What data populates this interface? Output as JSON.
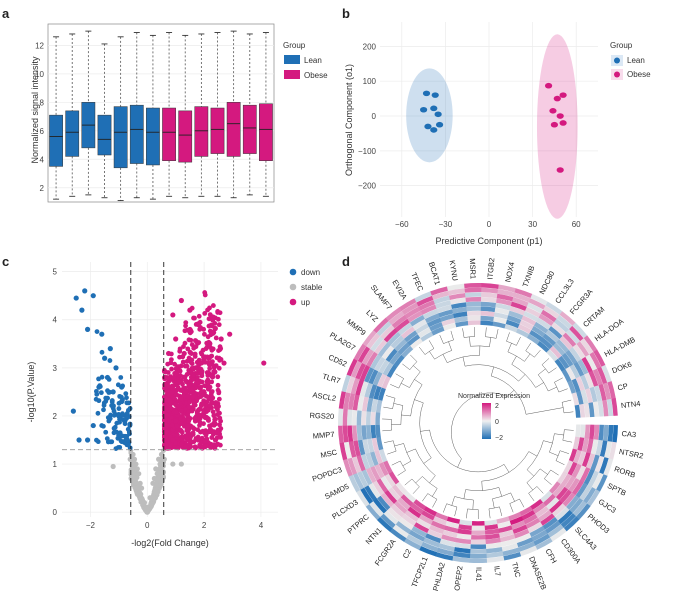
{
  "panels": {
    "a": {
      "letter": "a"
    },
    "b": {
      "letter": "b"
    },
    "c": {
      "letter": "c"
    },
    "d": {
      "letter": "d"
    }
  },
  "colors": {
    "lean": "#1f6fb5",
    "obese": "#d4197f",
    "down": "#1f6fb5",
    "stable": "#bdbdbd",
    "up": "#d4197f",
    "grid": "#ececec"
  },
  "chart_data": [
    {
      "id": "a",
      "type": "box",
      "ylabel": "Normalized signal intensity",
      "xlabel": "",
      "ylim": [
        1,
        13.5
      ],
      "yticks": [
        2,
        4,
        6,
        8,
        10,
        12
      ],
      "legend": {
        "title": "Group",
        "entries": [
          "Lean",
          "Obese"
        ],
        "position": "right"
      },
      "boxes": [
        {
          "group": "Lean",
          "min": 1.2,
          "q1": 3.5,
          "median": 5.6,
          "q3": 7.1,
          "max": 12.6
        },
        {
          "group": "Lean",
          "min": 1.4,
          "q1": 4.2,
          "median": 5.9,
          "q3": 7.4,
          "max": 12.8
        },
        {
          "group": "Lean",
          "min": 1.5,
          "q1": 4.8,
          "median": 6.4,
          "q3": 8.0,
          "max": 13.0
        },
        {
          "group": "Lean",
          "min": 1.3,
          "q1": 4.3,
          "median": 5.4,
          "q3": 7.1,
          "max": 12.1
        },
        {
          "group": "Lean",
          "min": 1.1,
          "q1": 3.4,
          "median": 5.9,
          "q3": 7.7,
          "max": 12.6
        },
        {
          "group": "Lean",
          "min": 1.3,
          "q1": 3.7,
          "median": 6.1,
          "q3": 7.8,
          "max": 12.9
        },
        {
          "group": "Lean",
          "min": 1.2,
          "q1": 3.6,
          "median": 5.9,
          "q3": 7.6,
          "max": 12.7
        },
        {
          "group": "Obese",
          "min": 1.4,
          "q1": 3.9,
          "median": 5.9,
          "q3": 7.6,
          "max": 12.9
        },
        {
          "group": "Obese",
          "min": 1.3,
          "q1": 3.8,
          "median": 5.7,
          "q3": 7.4,
          "max": 12.7
        },
        {
          "group": "Obese",
          "min": 1.4,
          "q1": 4.2,
          "median": 6.0,
          "q3": 7.7,
          "max": 12.8
        },
        {
          "group": "Obese",
          "min": 1.4,
          "q1": 4.4,
          "median": 6.1,
          "q3": 7.6,
          "max": 12.9
        },
        {
          "group": "Obese",
          "min": 1.3,
          "q1": 4.2,
          "median": 6.5,
          "q3": 8.0,
          "max": 13.0
        },
        {
          "group": "Obese",
          "min": 1.5,
          "q1": 4.4,
          "median": 6.2,
          "q3": 7.8,
          "max": 12.8
        },
        {
          "group": "Obese",
          "min": 1.4,
          "q1": 3.9,
          "median": 6.1,
          "q3": 7.9,
          "max": 12.9
        }
      ]
    },
    {
      "id": "b",
      "type": "scatter",
      "xlabel": "Predictive Component (p1)",
      "ylabel": "Orthogonal Component (o1)",
      "xlim": [
        -75,
        75
      ],
      "ylim": [
        -290,
        270
      ],
      "xticks": [
        -60,
        -30,
        0,
        30,
        60
      ],
      "yticks": [
        -200,
        -100,
        0,
        100,
        200
      ],
      "legend": {
        "title": "Group",
        "entries": [
          "Lean",
          "Obese"
        ],
        "position": "right"
      },
      "series": [
        {
          "name": "Lean",
          "points": [
            [
              -43,
              65
            ],
            [
              -37,
              60
            ],
            [
              -45,
              18
            ],
            [
              -38,
              22
            ],
            [
              -35,
              5
            ],
            [
              -42,
              -30
            ],
            [
              -38,
              -40
            ],
            [
              -34,
              -25
            ]
          ],
          "ellipse": {
            "cx": -41,
            "cy": 2,
            "rx": 16,
            "ry": 135
          }
        },
        {
          "name": "Obese",
          "points": [
            [
              41,
              87
            ],
            [
              51,
              60
            ],
            [
              47,
              50
            ],
            [
              44,
              15
            ],
            [
              49,
              0
            ],
            [
              45,
              -25
            ],
            [
              51,
              -20
            ],
            [
              49,
              -155
            ]
          ],
          "ellipse": {
            "cx": 47,
            "cy": -30,
            "rx": 14,
            "ry": 265
          }
        }
      ]
    },
    {
      "id": "c",
      "type": "scatter",
      "xlabel": "-log2(Fold Change)",
      "ylabel": "-log10(P.Value)",
      "xlim": [
        -3,
        4.6
      ],
      "ylim": [
        -0.1,
        5.2
      ],
      "xticks": [
        -2,
        0,
        2,
        4
      ],
      "yticks": [
        0,
        1,
        2,
        3,
        4,
        5
      ],
      "thresholds": {
        "fc": [
          -0.58,
          0.58
        ],
        "p": 1.3
      },
      "legend": {
        "entries": [
          "down",
          "stable",
          "up"
        ],
        "position": "right"
      },
      "series": [
        {
          "name": "down",
          "points": [
            [
              -2.5,
              4.45
            ],
            [
              -2.2,
              4.6
            ],
            [
              -1.9,
              4.5
            ],
            [
              -2.3,
              4.2
            ],
            [
              -2.6,
              2.1
            ],
            [
              -2.1,
              1.5
            ],
            [
              -2.4,
              1.5
            ],
            [
              -1.9,
              1.8
            ],
            [
              -2.1,
              3.8
            ],
            [
              -1.6,
              3.7
            ],
            [
              -1.3,
              3.4
            ],
            [
              -1.1,
              3.0
            ],
            [
              -0.9,
              2.6
            ],
            [
              -1.2,
              2.2
            ],
            [
              -0.8,
              1.9
            ],
            [
              -1.0,
              1.6
            ],
            [
              -0.75,
              1.45
            ],
            [
              -1.5,
              3.2
            ],
            [
              -1.4,
              2.8
            ],
            [
              -1.2,
              2.5
            ],
            [
              -0.9,
              2.3
            ],
            [
              -1.7,
              2.6
            ],
            [
              -0.7,
              1.5
            ],
            [
              -1.0,
              2.0
            ]
          ]
        },
        {
          "name": "stable",
          "points": [
            [
              0.0,
              0.0
            ],
            [
              -0.1,
              0.2
            ],
            [
              0.1,
              0.3
            ],
            [
              -0.2,
              0.5
            ],
            [
              0.2,
              0.6
            ],
            [
              -0.3,
              0.8
            ],
            [
              0.3,
              0.9
            ],
            [
              -0.4,
              1.0
            ],
            [
              0.4,
              1.1
            ],
            [
              -0.5,
              1.2
            ],
            [
              0.5,
              1.2
            ],
            [
              -0.25,
              0.6
            ],
            [
              0.25,
              0.7
            ],
            [
              -0.45,
              1.1
            ],
            [
              0.45,
              1.0
            ],
            [
              -0.6,
              1.1
            ],
            [
              0.6,
              1.1
            ],
            [
              -0.35,
              0.9
            ],
            [
              0.35,
              0.8
            ],
            [
              0.0,
              0.1
            ],
            [
              -1.2,
              0.95
            ],
            [
              0.9,
              1.0
            ],
            [
              1.2,
              1.0
            ]
          ]
        },
        {
          "name": "up",
          "points": [
            [
              4.1,
              3.1
            ],
            [
              2.9,
              3.7
            ],
            [
              2.6,
              3.6
            ],
            [
              2.3,
              4.0
            ],
            [
              2.2,
              3.5
            ],
            [
              2.0,
              3.2
            ],
            [
              1.8,
              3.9
            ],
            [
              1.5,
              4.2
            ],
            [
              1.2,
              4.4
            ],
            [
              0.9,
              4.1
            ],
            [
              1.0,
              3.6
            ],
            [
              1.3,
              3.3
            ],
            [
              1.7,
              3.0
            ],
            [
              2.2,
              2.6
            ],
            [
              2.5,
              2.2
            ],
            [
              1.6,
              2.4
            ],
            [
              1.1,
              2.7
            ],
            [
              0.8,
              2.3
            ],
            [
              0.7,
              1.8
            ],
            [
              1.0,
              1.9
            ],
            [
              1.4,
              1.7
            ],
            [
              1.8,
              1.5
            ],
            [
              2.4,
              1.5
            ],
            [
              0.65,
              1.4
            ],
            [
              0.9,
              1.5
            ],
            [
              1.2,
              2.1
            ],
            [
              1.5,
              2.9
            ],
            [
              2.0,
              2.0
            ],
            [
              2.7,
              3.1
            ],
            [
              0.75,
              3.3
            ]
          ]
        }
      ]
    },
    {
      "id": "d",
      "type": "heatmap",
      "layout": "circular",
      "legend": {
        "title": "Normalized Expression",
        "ticks": [
          "2",
          "0",
          "−2"
        ]
      },
      "genes": [
        "CA3",
        "NTSR2",
        "RORB",
        "SPTB",
        "GJC3",
        "PHOD3",
        "SLC4A3",
        "CD300A",
        "CFH",
        "DNASE2B",
        "TNC",
        "IL7",
        "IL41",
        "OPEP2",
        "PHLDA2",
        "TFCP2L1",
        "C2",
        "FCGR2A",
        "NTN1",
        "PTPRC",
        "PLCXD3",
        "SAMD5",
        "POPDC3",
        "MSC",
        "MMP7",
        "RGS20",
        "ASCL2",
        "TLR7",
        "CD52",
        "PLA2G7",
        "MMP9",
        "LYZ",
        "SLAMF7",
        "EVI2A",
        "TFEC",
        "BCAT1",
        "KYNU",
        "MSR1",
        "ITGB2",
        "NOX4",
        "TXNIB",
        "NDC80",
        "CCL3L3",
        "FCGR3A",
        "CRTAM",
        "HLA-DOA",
        "HLA-DMB",
        "DOK6",
        "CP",
        "NTN4"
      ],
      "rings": 9
    }
  ]
}
